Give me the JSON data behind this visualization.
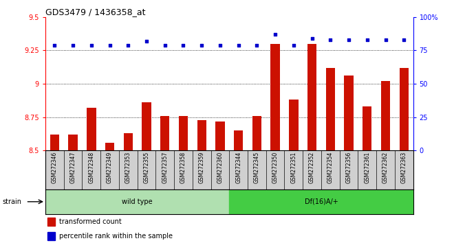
{
  "title": "GDS3479 / 1436358_at",
  "samples": [
    "GSM272346",
    "GSM272347",
    "GSM272348",
    "GSM272349",
    "GSM272353",
    "GSM272355",
    "GSM272357",
    "GSM272358",
    "GSM272359",
    "GSM272360",
    "GSM272344",
    "GSM272345",
    "GSM272350",
    "GSM272351",
    "GSM272352",
    "GSM272354",
    "GSM272356",
    "GSM272361",
    "GSM272362",
    "GSM272363"
  ],
  "transformed_count": [
    8.62,
    8.62,
    8.82,
    8.56,
    8.63,
    8.86,
    8.76,
    8.76,
    8.73,
    8.72,
    8.65,
    8.76,
    9.3,
    8.88,
    9.3,
    9.12,
    9.06,
    8.83,
    9.02,
    9.12
  ],
  "percentile_rank": [
    79,
    79,
    79,
    79,
    79,
    82,
    79,
    79,
    79,
    79,
    79,
    79,
    87,
    79,
    84,
    83,
    83,
    83,
    83,
    83
  ],
  "ylim_left": [
    8.5,
    9.5
  ],
  "ylim_right": [
    0,
    100
  ],
  "yticks_left": [
    8.5,
    8.75,
    9.0,
    9.25,
    9.5
  ],
  "yticks_left_labels": [
    "8.5",
    "8.75",
    "9",
    "9.25",
    "9.5"
  ],
  "yticks_right": [
    0,
    25,
    50,
    75,
    100
  ],
  "yticks_right_labels": [
    "0",
    "25",
    "50",
    "75",
    "100%"
  ],
  "gridlines": [
    8.75,
    9.0,
    9.25
  ],
  "bar_color": "#cc1100",
  "dot_color": "#0000cc",
  "label_bg_color": "#d0d0d0",
  "wt_color": "#b0e0b0",
  "df_color": "#44cc44",
  "legend_items": [
    "transformed count",
    "percentile rank within the sample"
  ],
  "n_wild": 10,
  "n_df": 10
}
